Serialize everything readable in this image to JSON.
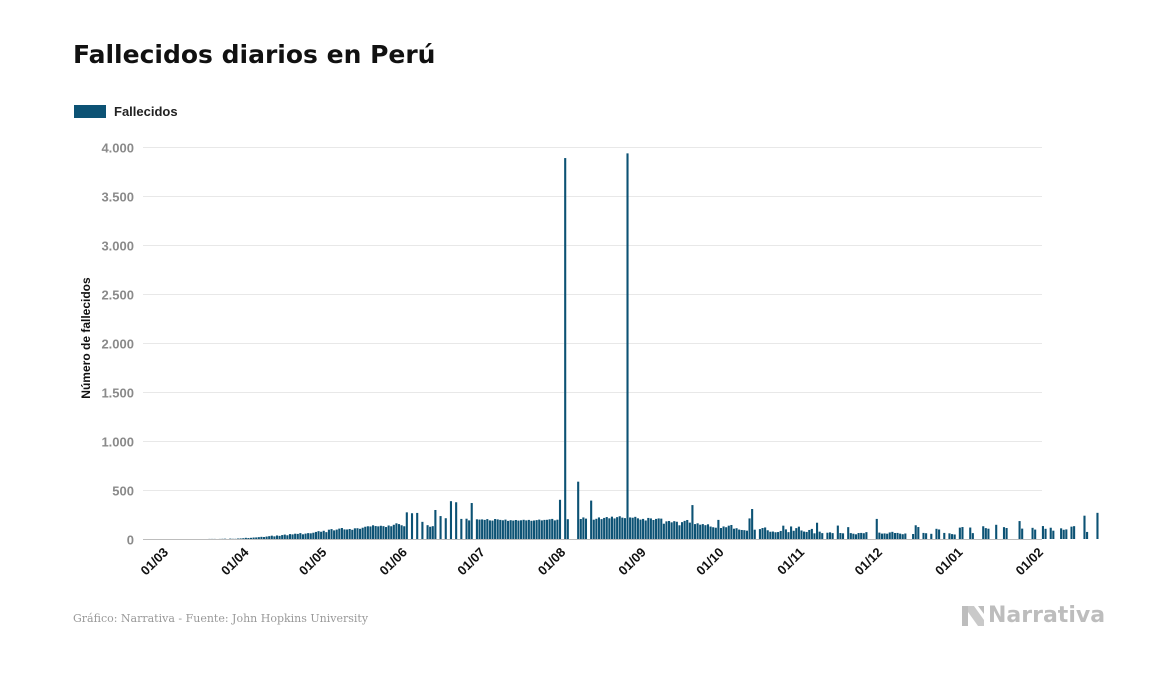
{
  "page": {
    "source": "Gráfico: Narrativa - Fuente: John Hopkins University",
    "brand": "Narrativa",
    "brand_icon": "narrativa-n-logo-icon"
  },
  "chart_data": {
    "type": "bar",
    "title": "Fallecidos diarios en Perú",
    "xlabel": "",
    "ylabel": "Número de fallecidos",
    "ylim": [
      0,
      4000
    ],
    "yticks": [
      0,
      500,
      1000,
      1500,
      2000,
      2500,
      3000,
      3500,
      4000
    ],
    "ytick_labels": [
      "0",
      "500",
      "1.000",
      "1.500",
      "2.000",
      "2.500",
      "3.000",
      "3.500",
      "4.000"
    ],
    "xlim": [
      "2020-03-01",
      "2021-02-01"
    ],
    "xticks": [
      "2020-03-01",
      "2020-04-01",
      "2020-05-01",
      "2020-06-01",
      "2020-07-01",
      "2020-08-01",
      "2020-09-01",
      "2020-10-01",
      "2020-11-01",
      "2020-12-01",
      "2021-01-01",
      "2021-02-01"
    ],
    "xtick_labels": [
      "01/03",
      "01/04",
      "01/05",
      "01/06",
      "01/07",
      "01/08",
      "01/09",
      "01/10",
      "01/11",
      "01/12",
      "01/01",
      "01/02"
    ],
    "grid": true,
    "legend_position": "top-left",
    "colors": {
      "bar": "#0c5274",
      "grid": "#e8e8e8"
    },
    "series": [
      {
        "name": "Fallecidos",
        "start_date": "2020-03-01",
        "values": [
          0,
          0,
          0,
          0,
          0,
          0,
          0,
          0,
          0,
          0,
          0,
          0,
          0,
          0,
          0,
          0,
          0,
          0,
          1,
          1,
          1,
          0,
          1,
          2,
          3,
          0,
          4,
          2,
          2,
          5,
          6,
          8,
          12,
          10,
          12,
          15,
          16,
          19,
          22,
          20,
          25,
          29,
          34,
          27,
          36,
          32,
          40,
          45,
          38,
          50,
          47,
          54,
          52,
          60,
          48,
          55,
          60,
          58,
          64,
          72,
          80,
          74,
          84,
          70,
          95,
          101,
          88,
          96,
          106,
          112,
          98,
          97,
          102,
          94,
          109,
          110,
          104,
          115,
          125,
          130,
          128,
          140,
          132,
          129,
          135,
          131,
          122,
          138,
          130,
          145,
          160,
          152,
          140,
          130,
          272,
          0,
          263,
          0,
          266,
          0,
          175,
          0,
          141,
          125,
          131,
          296,
          0,
          234,
          0,
          212,
          0,
          386,
          0,
          375,
          0,
          205,
          0,
          207,
          190,
          367,
          0,
          201,
          198,
          200,
          195,
          203,
          190,
          188,
          204,
          200,
          195,
          191,
          198,
          185,
          192,
          188,
          194,
          188,
          191,
          196,
          190,
          195,
          186,
          189,
          193,
          198,
          190,
          195,
          196,
          201,
          205,
          190,
          197,
          400,
          0,
          3887,
          202,
          0,
          0,
          0,
          585,
          204,
          220,
          208,
          0,
          392,
          197,
          206,
          220,
          203,
          215,
          224,
          211,
          228,
          210,
          223,
          232,
          218,
          213,
          3935,
          220,
          217,
          226,
          211,
          198,
          205,
          189,
          215,
          210,
          194,
          205,
          210,
          208,
          156,
          180,
          184,
          170,
          182,
          176,
          140,
          172,
          185,
          194,
          167,
          346,
          152,
          160,
          146,
          152,
          141,
          150,
          127,
          120,
          115,
          195,
          112,
          128,
          120,
          136,
          143,
          105,
          110,
          96,
          92,
          90,
          85,
          210,
          306,
          95,
          0,
          101,
          112,
          118,
          89,
          74,
          76,
          69,
          71,
          82,
          136,
          98,
          70,
          128,
          84,
          111,
          126,
          87,
          76,
          72,
          92,
          103,
          58,
          166,
          75,
          60,
          0,
          64,
          68,
          60,
          0,
          137,
          61,
          58,
          0,
          121,
          60,
          54,
          48,
          61,
          62,
          59,
          70,
          0,
          0,
          0,
          205,
          65,
          55,
          57,
          54,
          67,
          73,
          61,
          62,
          55,
          49,
          56,
          0,
          0,
          51,
          140,
          122,
          0,
          62,
          59,
          0,
          53,
          0,
          104,
          97,
          0,
          62,
          0,
          58,
          50,
          46,
          0,
          116,
          122,
          0,
          0,
          117,
          60,
          0,
          0,
          0,
          130,
          111,
          105,
          0,
          0,
          145,
          0,
          0,
          121,
          112,
          0,
          0,
          0,
          0,
          183,
          106,
          0,
          0,
          0,
          114,
          96,
          0,
          0,
          132,
          104,
          0,
          115,
          85,
          0,
          0,
          109,
          94,
          98,
          0,
          126,
          131,
          0,
          0,
          0,
          238,
          72,
          0,
          0,
          0,
          267
        ]
      }
    ]
  }
}
